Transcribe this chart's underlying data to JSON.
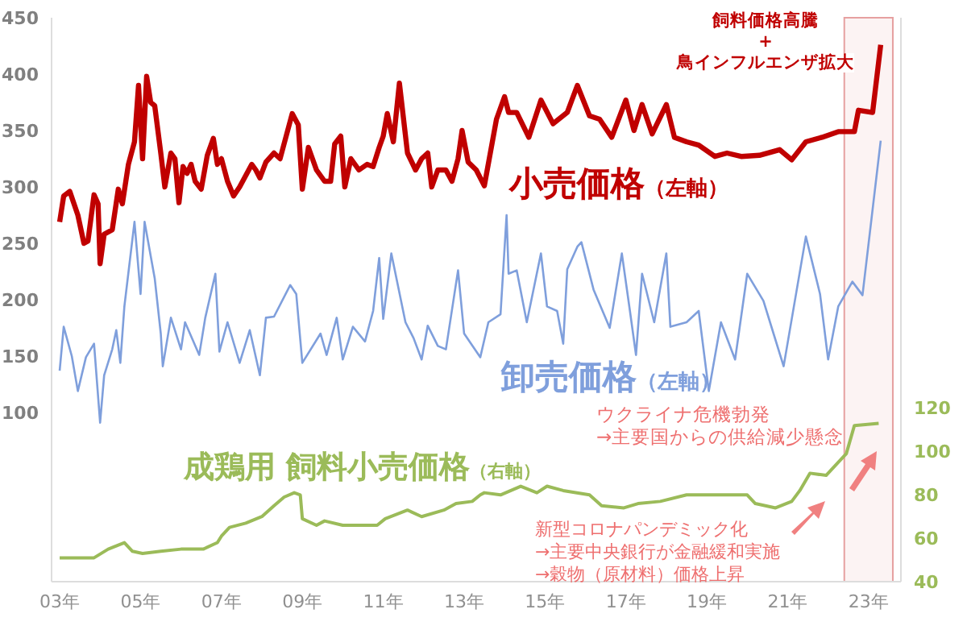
{
  "chart_data": {
    "type": "line",
    "xlim": [
      2.8,
      23.8
    ],
    "xticks": [
      {
        "value": 3,
        "label": "03年"
      },
      {
        "value": 5,
        "label": "05年"
      },
      {
        "value": 7,
        "label": "07年"
      },
      {
        "value": 9,
        "label": "09年"
      },
      {
        "value": 11,
        "label": "11年"
      },
      {
        "value": 13,
        "label": "13年"
      },
      {
        "value": 15,
        "label": "15年"
      },
      {
        "value": 17,
        "label": "17年"
      },
      {
        "value": 19,
        "label": "19年"
      },
      {
        "value": 21,
        "label": "21年"
      },
      {
        "value": 23,
        "label": "23年"
      }
    ],
    "ylim": [
      -50,
      450
    ],
    "yticks": [
      100,
      150,
      200,
      250,
      300,
      350,
      400,
      450
    ],
    "y2lim": [
      40,
      300
    ],
    "y2ticks": [
      40,
      60,
      80,
      100,
      120
    ],
    "marker": "none",
    "series": [
      {
        "name": "小売価格（左軸）",
        "color": "#c00000",
        "x": [
          3.0,
          3.1,
          3.25,
          3.45,
          3.6,
          3.7,
          3.85,
          3.95,
          4.0,
          4.1,
          4.3,
          4.45,
          4.55,
          4.7,
          4.85,
          4.95,
          5.05,
          5.15,
          5.25,
          5.35,
          5.5,
          5.6,
          5.75,
          5.85,
          5.95,
          6.05,
          6.15,
          6.25,
          6.35,
          6.5,
          6.65,
          6.8,
          6.9,
          7.0,
          7.15,
          7.3,
          7.45,
          7.6,
          7.75,
          7.85,
          7.95,
          8.1,
          8.3,
          8.45,
          8.6,
          8.75,
          8.9,
          9.0,
          9.15,
          9.35,
          9.55,
          9.7,
          9.8,
          9.95,
          10.05,
          10.2,
          10.4,
          10.6,
          10.75,
          10.9,
          11.0,
          11.1,
          11.25,
          11.4,
          11.6,
          11.8,
          11.95,
          12.1,
          12.2,
          12.35,
          12.55,
          12.7,
          12.85,
          12.95,
          13.1,
          13.3,
          13.5,
          13.8,
          14.0,
          14.1,
          14.3,
          14.6,
          14.9,
          15.2,
          15.55,
          15.8,
          16.1,
          16.35,
          16.65,
          17.0,
          17.2,
          17.4,
          17.65,
          18.0,
          18.2,
          18.5,
          18.8,
          19.2,
          19.5,
          19.85,
          20.3,
          20.8,
          21.1,
          21.45,
          21.85,
          22.25,
          22.65,
          22.75,
          23.1,
          23.3
        ],
        "values": [
          269,
          292,
          296,
          275,
          250,
          252,
          293,
          285,
          232,
          258,
          262,
          298,
          285,
          320,
          340,
          390,
          325,
          398,
          375,
          372,
          330,
          300,
          330,
          325,
          286,
          318,
          312,
          320,
          305,
          298,
          328,
          343,
          320,
          325,
          305,
          292,
          300,
          310,
          320,
          315,
          308,
          322,
          330,
          325,
          345,
          365,
          355,
          298,
          335,
          315,
          305,
          305,
          338,
          345,
          300,
          325,
          315,
          320,
          318,
          335,
          345,
          365,
          340,
          392,
          330,
          315,
          325,
          330,
          300,
          315,
          315,
          305,
          325,
          350,
          322,
          315,
          301,
          360,
          380,
          366,
          366,
          344,
          377,
          356,
          366,
          390,
          363,
          360,
          344,
          377,
          350,
          373,
          347,
          373,
          344,
          340,
          337,
          327,
          330,
          327,
          328,
          333,
          324,
          340,
          344,
          349,
          349,
          368,
          366,
          426
        ]
      },
      {
        "name": "卸売価格（左軸）",
        "color": "#7f9fdc",
        "x": [
          3.0,
          3.1,
          3.3,
          3.45,
          3.65,
          3.85,
          4.0,
          4.1,
          4.3,
          4.4,
          4.5,
          4.6,
          4.85,
          5.0,
          5.1,
          5.35,
          5.5,
          5.55,
          5.75,
          6.0,
          6.1,
          6.45,
          6.6,
          6.85,
          6.95,
          7.15,
          7.45,
          7.7,
          7.95,
          8.1,
          8.3,
          8.7,
          8.85,
          9.0,
          9.45,
          9.6,
          9.85,
          10.0,
          10.25,
          10.55,
          10.75,
          10.9,
          11.0,
          11.2,
          11.55,
          11.75,
          11.95,
          12.1,
          12.35,
          12.55,
          12.85,
          13.0,
          13.4,
          13.6,
          13.9,
          14.05,
          14.1,
          14.3,
          14.55,
          14.9,
          15.05,
          15.3,
          15.45,
          15.55,
          15.8,
          15.9,
          16.2,
          16.6,
          16.9,
          17.1,
          17.25,
          17.4,
          17.7,
          18.0,
          18.1,
          18.5,
          18.8,
          19.05,
          19.35,
          19.7,
          20.0,
          20.4,
          20.65,
          20.9,
          21.45,
          21.8,
          22.0,
          22.25,
          22.6,
          22.85,
          23.3
        ],
        "values": [
          137,
          176,
          150,
          119,
          149,
          161,
          91,
          133,
          156,
          173,
          144,
          194,
          269,
          205,
          269,
          219,
          170,
          141,
          184,
          156,
          180,
          151,
          184,
          223,
          154,
          180,
          144,
          173,
          133,
          184,
          185,
          213,
          205,
          144,
          170,
          151,
          184,
          147,
          176,
          163,
          190,
          237,
          183,
          241,
          180,
          166,
          147,
          177,
          159,
          156,
          226,
          170,
          149,
          180,
          187,
          275,
          223,
          226,
          180,
          241,
          194,
          190,
          161,
          227,
          247,
          251,
          209,
          175,
          241,
          190,
          151,
          223,
          180,
          241,
          176,
          180,
          190,
          119,
          180,
          147,
          223,
          199,
          170,
          141,
          256,
          205,
          147,
          194,
          216,
          204,
          341
        ]
      },
      {
        "name": "成鶏用 飼料小売価格（右軸）",
        "color": "#9bbb59",
        "axis": "y2",
        "x": [
          3.0,
          3.85,
          4.2,
          4.6,
          4.8,
          5.05,
          5.5,
          6.0,
          6.55,
          6.9,
          7.0,
          7.2,
          7.6,
          8.0,
          8.3,
          8.55,
          8.8,
          8.95,
          9.0,
          9.35,
          9.55,
          10.0,
          10.85,
          11.05,
          11.6,
          11.95,
          12.5,
          12.8,
          13.2,
          13.4,
          13.5,
          13.9,
          14.4,
          14.8,
          15.05,
          15.45,
          16.1,
          16.4,
          16.95,
          17.3,
          17.85,
          18.5,
          19.2,
          20.0,
          20.2,
          20.7,
          21.1,
          21.3,
          21.55,
          21.95,
          22.25,
          22.45,
          22.65,
          23.25
        ],
        "values": [
          51,
          51,
          55,
          58,
          54,
          53,
          54,
          55,
          55,
          58,
          61,
          65,
          67,
          70,
          75,
          79,
          81,
          80,
          69,
          66,
          68,
          66,
          66,
          69,
          73,
          70,
          73,
          76,
          77,
          80,
          81,
          80,
          84,
          81,
          84,
          82,
          80,
          75,
          74,
          76,
          77,
          80,
          80,
          80,
          76,
          74,
          77,
          82,
          90,
          89,
          95,
          99,
          112,
          113
        ]
      }
    ],
    "bands": [
      {
        "axis": "x",
        "from": 22.4,
        "to": 23.6,
        "color": "#e6a0a0"
      }
    ],
    "annotations": [
      "飼料価格高騰\n+\n鳥インフルエンザ拡大",
      "ウクライナ危機勃発\n→主要国からの供給減少懸念",
      "新型コロナパンデミック化\n→主要中央銀行が金融緩和実施\n→穀物（原材料）価格上昇"
    ]
  }
}
